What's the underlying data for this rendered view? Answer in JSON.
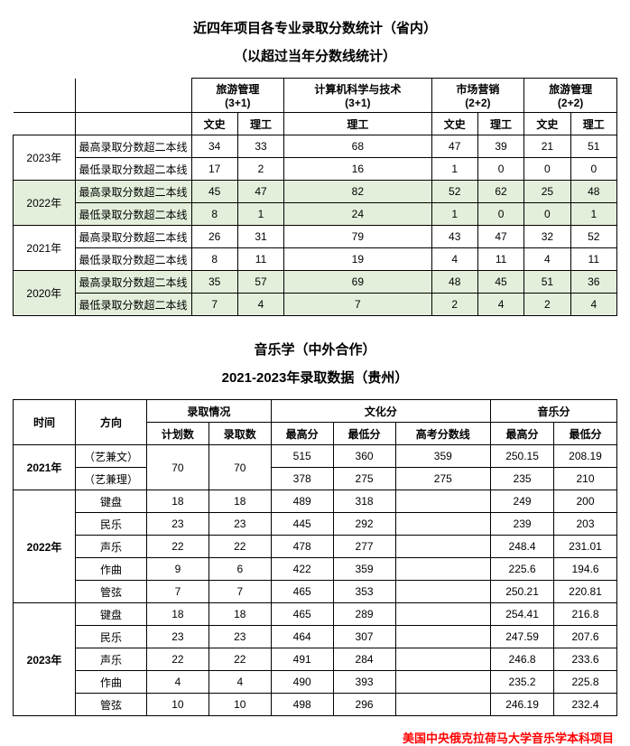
{
  "section1": {
    "title": "近四年项目各专业录取分数统计（省内）",
    "subtitle": "（以超过当年分数线统计）",
    "majors": [
      "旅游管理\n(3+1)",
      "计算机科学与技术\n(3+1)",
      "市场营销\n(2+2)",
      "旅游管理\n(2+2)"
    ],
    "subcols": [
      "文史",
      "理工",
      "文史",
      "理工",
      "文史",
      "理工"
    ],
    "cs_label": "理工",
    "row_labels": {
      "high": "最高录取分数超二本线",
      "low": "最低录取分数超二本线"
    },
    "years": [
      {
        "year": "2023年",
        "green": false,
        "high": [
          "34",
          "33",
          "68",
          "47",
          "39",
          "21",
          "51"
        ],
        "low": [
          "17",
          "2",
          "16",
          "1",
          "0",
          "0",
          "0"
        ]
      },
      {
        "year": "2022年",
        "green": true,
        "high": [
          "45",
          "47",
          "82",
          "52",
          "62",
          "25",
          "48"
        ],
        "low": [
          "8",
          "1",
          "24",
          "1",
          "0",
          "0",
          "1"
        ]
      },
      {
        "year": "2021年",
        "green": false,
        "high": [
          "26",
          "31",
          "79",
          "43",
          "47",
          "32",
          "52"
        ],
        "low": [
          "8",
          "11",
          "19",
          "4",
          "11",
          "4",
          "11"
        ]
      },
      {
        "year": "2020年",
        "green": true,
        "high": [
          "35",
          "57",
          "69",
          "48",
          "45",
          "51",
          "36"
        ],
        "low": [
          "7",
          "4",
          "7",
          "2",
          "4",
          "2",
          "4"
        ]
      }
    ]
  },
  "section2": {
    "title": "音乐学（中外合作）",
    "subtitle": "2021-2023年录取数据（贵州）",
    "headers": {
      "time": "时间",
      "dir": "方向",
      "admit": "录取情况",
      "culture": "文化分",
      "music": "音乐分",
      "plan": "计划数",
      "enroll": "录取数",
      "max": "最高分",
      "min": "最低分",
      "line": "高考分数线",
      "max2": "最高分",
      "min2": "最低分"
    },
    "y2021": {
      "year": "2021年",
      "rows": [
        {
          "dir": "（艺兼文）",
          "plan": "70",
          "enroll": "70",
          "cmax": "515",
          "cmin": "360",
          "line": "359",
          "mmax": "250.15",
          "mmin": "208.19"
        },
        {
          "dir": "（艺兼理）",
          "cmax": "378",
          "cmin": "275",
          "line": "275",
          "mmax": "235",
          "mmin": "210"
        }
      ]
    },
    "y2022": {
      "year": "2022年",
      "rows": [
        {
          "dir": "键盘",
          "plan": "18",
          "enroll": "18",
          "cmax": "489",
          "cmin": "318",
          "line": "",
          "mmax": "249",
          "mmin": "200"
        },
        {
          "dir": "民乐",
          "plan": "23",
          "enroll": "23",
          "cmax": "445",
          "cmin": "292",
          "line": "",
          "mmax": "239",
          "mmin": "203"
        },
        {
          "dir": "声乐",
          "plan": "22",
          "enroll": "22",
          "cmax": "478",
          "cmin": "277",
          "line": "",
          "mmax": "248.4",
          "mmin": "231.01"
        },
        {
          "dir": "作曲",
          "plan": "9",
          "enroll": "6",
          "cmax": "422",
          "cmin": "359",
          "line": "",
          "mmax": "225.6",
          "mmin": "194.6"
        },
        {
          "dir": "管弦",
          "plan": "7",
          "enroll": "7",
          "cmax": "465",
          "cmin": "353",
          "line": "",
          "mmax": "250.21",
          "mmin": "220.81"
        }
      ]
    },
    "y2023": {
      "year": "2023年",
      "rows": [
        {
          "dir": "键盘",
          "plan": "18",
          "enroll": "18",
          "cmax": "465",
          "cmin": "289",
          "line": "",
          "mmax": "254.41",
          "mmin": "216.8"
        },
        {
          "dir": "民乐",
          "plan": "23",
          "enroll": "23",
          "cmax": "464",
          "cmin": "307",
          "line": "",
          "mmax": "247.59",
          "mmin": "207.6"
        },
        {
          "dir": "声乐",
          "plan": "22",
          "enroll": "22",
          "cmax": "491",
          "cmin": "284",
          "line": "",
          "mmax": "246.8",
          "mmin": "233.6"
        },
        {
          "dir": "作曲",
          "plan": "4",
          "enroll": "4",
          "cmax": "490",
          "cmin": "393",
          "line": "",
          "mmax": "235.2",
          "mmin": "225.8"
        },
        {
          "dir": "管弦",
          "plan": "10",
          "enroll": "10",
          "cmax": "498",
          "cmin": "296",
          "line": "",
          "mmax": "246.19",
          "mmin": "232.4"
        }
      ]
    }
  },
  "footer": "美国中央俄克拉荷马大学音乐学本科项目"
}
